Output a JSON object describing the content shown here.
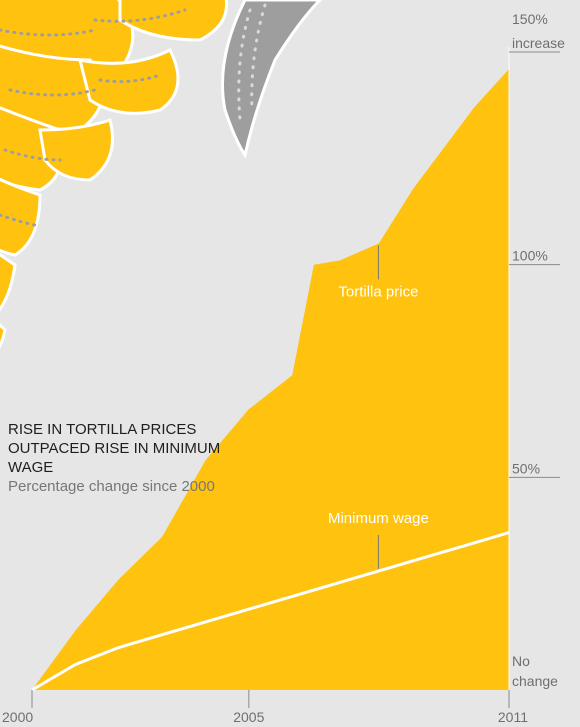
{
  "chart_data": {
    "type": "area",
    "title": "RISE IN TORTILLA PRICES OUTPACED RISE IN MINIMUM WAGE",
    "subtitle": "Percentage change since 2000",
    "x": [
      2000,
      2001,
      2002,
      2003,
      2004,
      2005,
      2006,
      2007,
      2008,
      2009,
      2010,
      2011
    ],
    "xlim": [
      2000,
      2011
    ],
    "ylim": [
      0,
      155
    ],
    "x_ticks": [
      {
        "value": 2000,
        "label": "2000"
      },
      {
        "value": 2005,
        "label": "2005"
      },
      {
        "value": 2011,
        "label": "2011"
      }
    ],
    "y_ticks": [
      {
        "value": 150,
        "label_line1": "150%",
        "label_line2": "increase"
      },
      {
        "value": 100,
        "label_line1": "100%",
        "label_line2": ""
      },
      {
        "value": 50,
        "label_line1": "50%",
        "label_line2": ""
      },
      {
        "value": 0,
        "label_line1": "No",
        "label_line2": "change"
      }
    ],
    "series": [
      {
        "name": "Tortilla price",
        "x": [
          2000,
          2001,
          2002,
          2003,
          2004,
          2005,
          2006,
          2006.5,
          2007.1,
          2008,
          2008.8,
          2010.2,
          2011
        ],
        "values": [
          0,
          14,
          26,
          36,
          54,
          66,
          74,
          100,
          101,
          105,
          118,
          137,
          146
        ],
        "color": "#ffc20e"
      },
      {
        "name": "Minimum wage",
        "x": [
          2000,
          2001,
          2002,
          2003,
          2004,
          2005,
          2006,
          2007,
          2008,
          2009,
          2010,
          2011
        ],
        "values": [
          0,
          6,
          10,
          13,
          16,
          19,
          22,
          25,
          28,
          31,
          34,
          37
        ],
        "color": "#ffffff"
      }
    ],
    "annotations": [
      {
        "text": "Tortilla price",
        "x": 2008,
        "y": 105
      },
      {
        "text": "Minimum wage",
        "x": 2008,
        "y": 28
      }
    ],
    "grid": false,
    "colors": {
      "background": "#e6e6e6",
      "area": "#ffc20e",
      "decoration_gray": "#9e9e9e"
    }
  }
}
